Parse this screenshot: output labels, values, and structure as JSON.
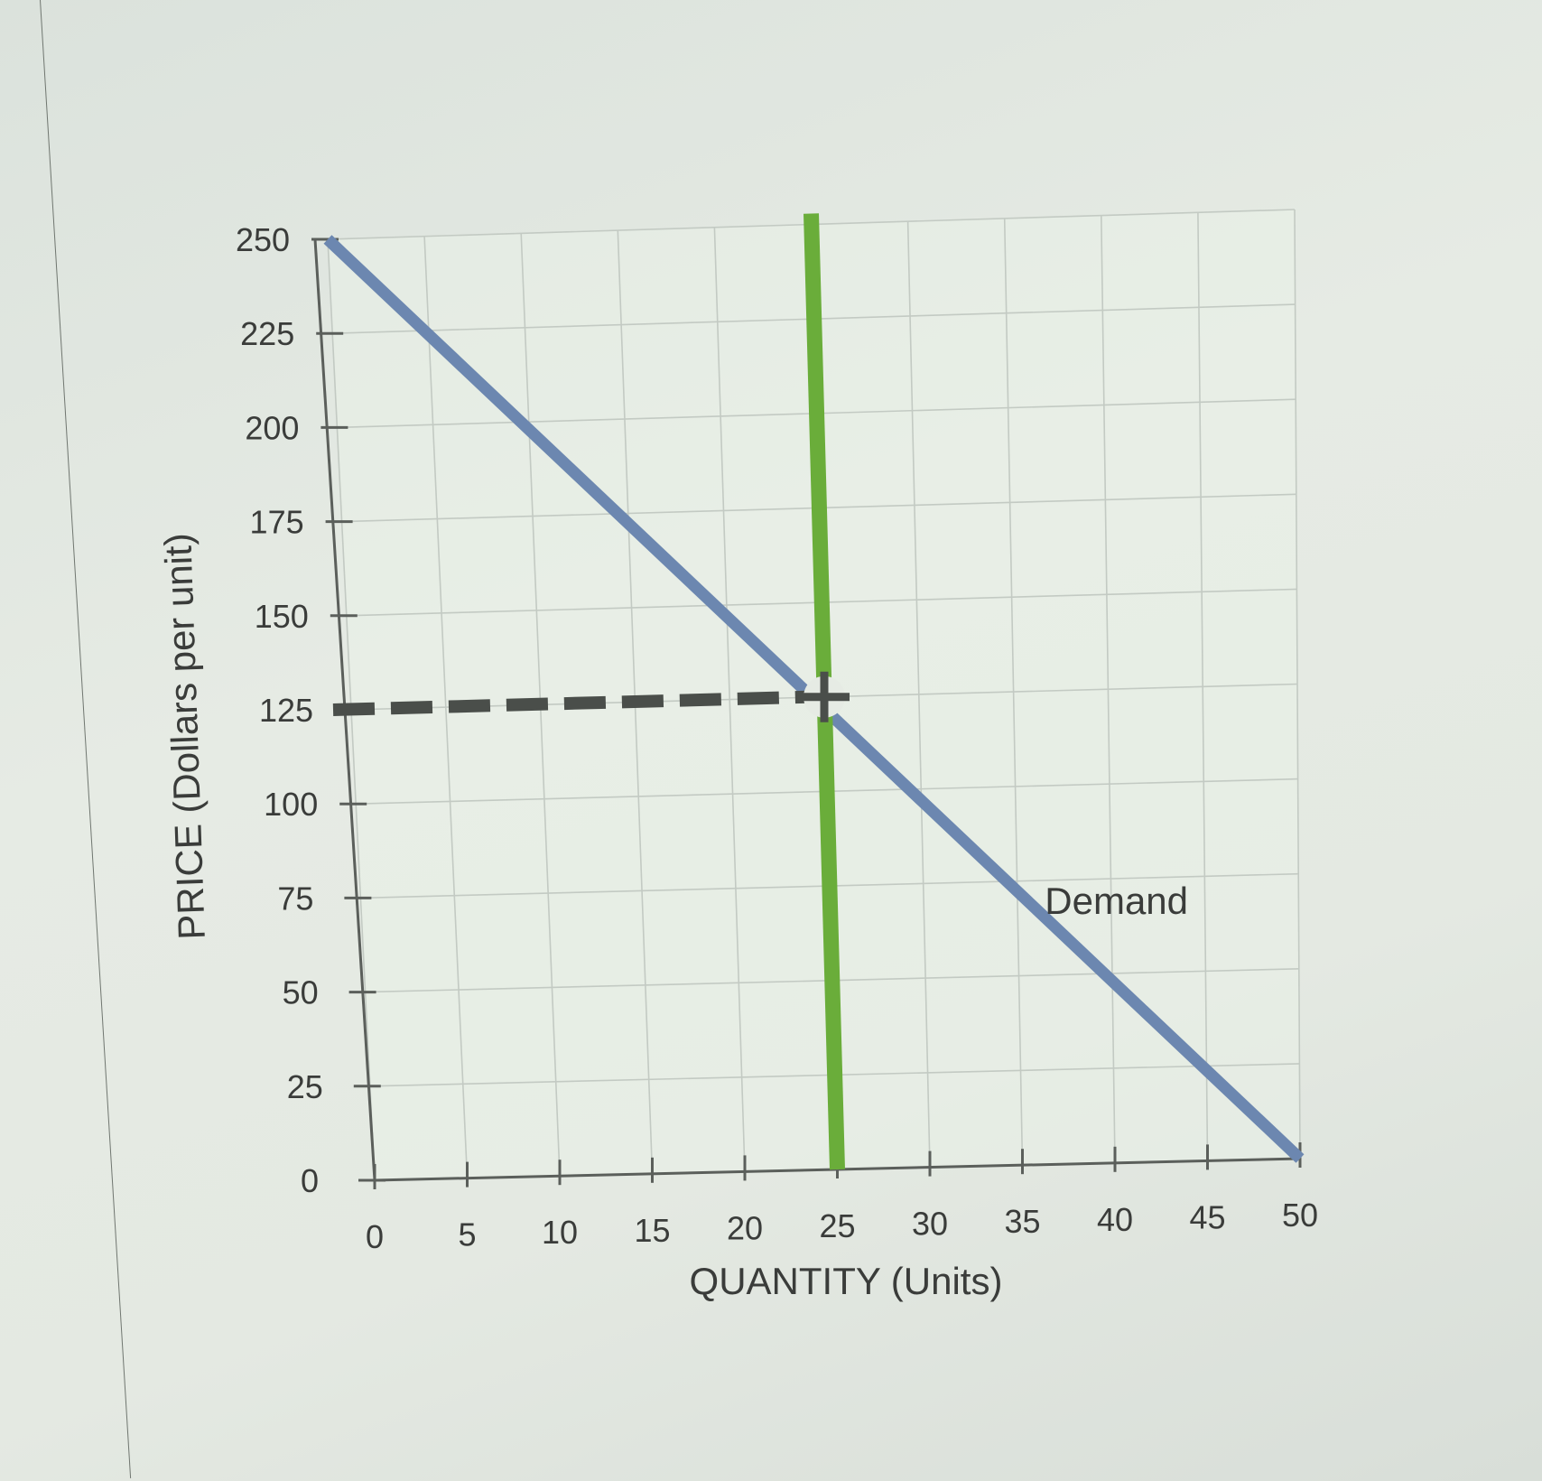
{
  "chart_data": {
    "type": "line",
    "title": "",
    "xlabel": "QUANTITY (Units)",
    "ylabel": "PRICE (Dollars per unit)",
    "xlim": [
      0,
      50
    ],
    "ylim": [
      0,
      250
    ],
    "x_ticks": [
      "0",
      "5",
      "10",
      "15",
      "20",
      "25",
      "30",
      "35",
      "40",
      "45",
      "50"
    ],
    "y_ticks": [
      "0",
      "25",
      "50",
      "75",
      "100",
      "125",
      "150",
      "175",
      "200",
      "225",
      "250"
    ],
    "grid": true,
    "series": [
      {
        "name": "Demand",
        "color": "#6c87b0",
        "x": [
          0,
          50
        ],
        "y": [
          250,
          0
        ]
      },
      {
        "name": "",
        "color": "#6aad3a",
        "x": [
          25,
          25
        ],
        "y": [
          0,
          250
        ]
      }
    ],
    "reference_lines": [
      {
        "style": "dashed",
        "color": "#4a4e4a",
        "x": [
          0,
          25
        ],
        "y": [
          125,
          125
        ]
      }
    ],
    "markers": [
      {
        "shape": "cross",
        "color": "#4a4e4a",
        "x": 25,
        "y": 125
      }
    ]
  }
}
